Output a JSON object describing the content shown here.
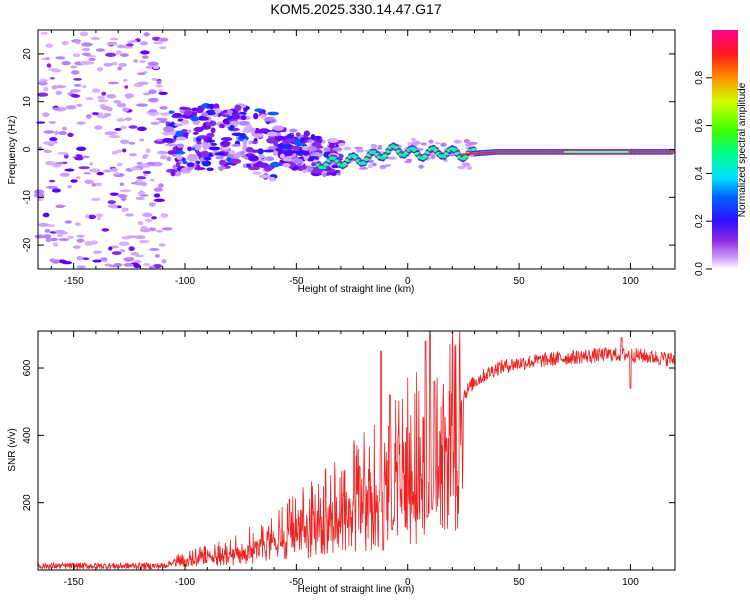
{
  "title": "KOM5.2025.330.14.47.G17",
  "chart_data": [
    {
      "type": "heatmap",
      "xlabel": "Height of straight line (km)",
      "ylabel": "Frequency (Hz)",
      "xlim": [
        -166,
        120
      ],
      "ylim": [
        -25,
        25
      ],
      "xticks": [
        -150,
        -100,
        -50,
        0,
        50,
        100
      ],
      "xtick_labels": [
        "-150",
        "-100",
        "-50",
        "0",
        "50",
        "100"
      ],
      "yticks": [
        -20,
        -10,
        0,
        10,
        20
      ],
      "ytick_labels": [
        "-20",
        "-10",
        "0",
        "10",
        "20"
      ],
      "colorbar": {
        "label": "Normalized spectral amplitude",
        "range": [
          0,
          1
        ],
        "ticks": [
          0.0,
          0.2,
          0.4,
          0.6,
          0.8
        ],
        "tick_labels": [
          "0.0",
          "0.2",
          "0.4",
          "0.6",
          "0.8"
        ]
      },
      "description_points": {
        "noise_region_x": [
          -166,
          -108
        ],
        "noise_freq_spread": 25,
        "cluster_region_x": [
          -105,
          -30
        ],
        "cluster_center_freq": [
          [
            -95,
            2
          ],
          [
            -80,
            3
          ],
          [
            -65,
            1
          ],
          [
            -50,
            0
          ],
          [
            -35,
            -2
          ]
        ],
        "line_segment": [
          [
            -40,
            -3
          ],
          [
            -20,
            -2
          ],
          [
            -5,
            0
          ],
          [
            5,
            -1
          ],
          [
            15,
            -0.5
          ],
          [
            25,
            -1
          ],
          [
            40,
            -0.5
          ],
          [
            120,
            -0.5
          ]
        ]
      }
    },
    {
      "type": "line",
      "xlabel": "Height of straight line (km)",
      "ylabel": "SNR (v/v)",
      "xlim": [
        -166,
        120
      ],
      "ylim": [
        0,
        710
      ],
      "xticks": [
        -150,
        -100,
        -50,
        0,
        50,
        100
      ],
      "xtick_labels": [
        "-150",
        "-100",
        "-50",
        "0",
        "50",
        "100"
      ],
      "yticks": [
        200,
        400,
        600
      ],
      "ytick_labels": [
        "200",
        "400",
        "600"
      ],
      "color": "#ee2222",
      "trend": [
        [
          -166,
          12
        ],
        [
          -110,
          12
        ],
        [
          -100,
          35
        ],
        [
          -80,
          60
        ],
        [
          -60,
          110
        ],
        [
          -40,
          180
        ],
        [
          -20,
          260
        ],
        [
          -10,
          300
        ],
        [
          0,
          360
        ],
        [
          10,
          390
        ],
        [
          20,
          450
        ],
        [
          25,
          520
        ],
        [
          30,
          560
        ],
        [
          40,
          600
        ],
        [
          50,
          615
        ],
        [
          70,
          630
        ],
        [
          90,
          640
        ],
        [
          100,
          640
        ],
        [
          120,
          625
        ]
      ],
      "spikes": [
        [
          -12,
          650
        ],
        [
          -8,
          520
        ],
        [
          8,
          680
        ],
        [
          10,
          700
        ],
        [
          12,
          560
        ],
        [
          96,
          690
        ]
      ],
      "dips": [
        [
          -11,
          60
        ],
        [
          -7,
          120
        ],
        [
          9,
          160
        ],
        [
          11,
          180
        ],
        [
          100,
          540
        ]
      ]
    }
  ]
}
